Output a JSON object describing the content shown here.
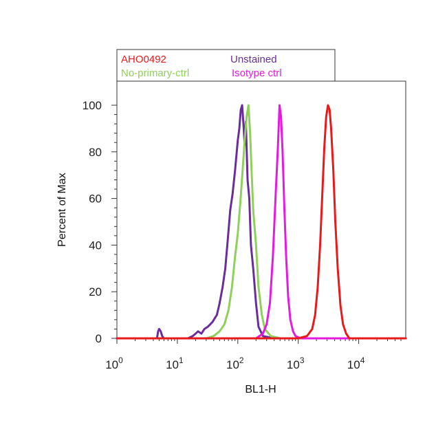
{
  "chart_data": {
    "type": "line",
    "xlabel": "BL1-H",
    "ylabel": "Percent of Max",
    "x_scale": "log",
    "xlim": [
      1,
      60000
    ],
    "ylim": [
      0,
      110
    ],
    "x_ticks": [
      {
        "value": 1,
        "base": "10",
        "exp": "0"
      },
      {
        "value": 10,
        "base": "10",
        "exp": "1"
      },
      {
        "value": 100,
        "base": "10",
        "exp": "2"
      },
      {
        "value": 1000,
        "base": "10",
        "exp": "3"
      },
      {
        "value": 10000,
        "base": "10",
        "exp": "4"
      }
    ],
    "y_ticks": [
      0,
      20,
      40,
      60,
      80,
      100
    ],
    "grid": false,
    "legend": {
      "placement": "top",
      "entries": [
        {
          "name": "AHO0492",
          "color": "#e8191b"
        },
        {
          "name": "Unstained",
          "color": "#6a2c9a"
        },
        {
          "name": "No-primary-ctrl",
          "color": "#8ed05a"
        },
        {
          "name": "Isotype ctrl",
          "color": "#e619e0"
        }
      ]
    },
    "series": [
      {
        "name": "Unstained",
        "color": "#6a2c9a",
        "x": [
          1,
          4.6,
          4.8,
          5.0,
          5.3,
          5.6,
          6,
          15,
          18,
          20,
          22,
          25,
          28,
          32,
          38,
          45,
          50,
          56,
          62,
          68,
          75,
          82,
          90,
          100,
          106,
          112,
          118,
          124,
          130,
          136,
          145,
          155,
          165,
          180,
          200,
          220,
          260,
          400,
          60000
        ],
        "y": [
          0,
          0,
          3,
          4,
          3,
          1,
          0,
          0,
          1,
          2,
          3,
          2,
          4,
          5,
          7,
          10,
          15,
          22,
          30,
          42,
          55,
          62,
          72,
          85,
          90,
          98,
          100,
          92,
          83,
          93,
          68,
          60,
          40,
          30,
          15,
          5,
          1,
          0,
          0
        ]
      },
      {
        "name": "No-primary-ctrl",
        "color": "#8ed05a",
        "x": [
          1,
          30,
          40,
          50,
          60,
          70,
          80,
          90,
          100,
          110,
          120,
          130,
          140,
          150,
          160,
          170,
          180,
          200,
          220,
          250,
          280,
          350,
          500,
          60000
        ],
        "y": [
          0,
          0,
          1,
          3,
          6,
          12,
          22,
          35,
          45,
          58,
          72,
          85,
          95,
          100,
          88,
          70,
          55,
          40,
          22,
          10,
          4,
          1,
          0,
          0
        ]
      },
      {
        "name": "Isotype ctrl",
        "color": "#e619e0",
        "x": [
          1,
          200,
          260,
          300,
          340,
          380,
          420,
          460,
          490,
          520,
          550,
          590,
          630,
          680,
          740,
          820,
          900,
          1100,
          60000
        ],
        "y": [
          0,
          0,
          2,
          6,
          15,
          35,
          60,
          82,
          100,
          95,
          80,
          55,
          35,
          18,
          8,
          3,
          1,
          0,
          0
        ]
      },
      {
        "name": "AHO0492",
        "color": "#e8191b",
        "x": [
          1,
          1000,
          1400,
          1700,
          1900,
          2100,
          2300,
          2500,
          2700,
          2900,
          3100,
          3300,
          3500,
          3800,
          4100,
          4500,
          5000,
          5500,
          6200,
          7000,
          60000
        ],
        "y": [
          0,
          0,
          1,
          4,
          10,
          22,
          40,
          62,
          82,
          95,
          100,
          98,
          90,
          72,
          50,
          30,
          14,
          6,
          2,
          0,
          0
        ]
      }
    ]
  }
}
